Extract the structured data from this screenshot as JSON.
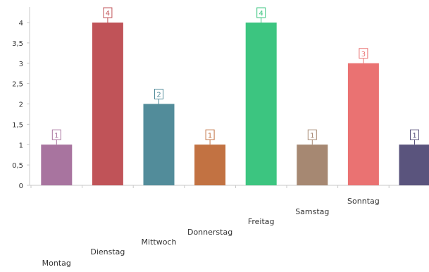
{
  "chart_data": {
    "type": "bar",
    "title": "",
    "xlabel": "",
    "ylabel": "",
    "ylim": [
      0,
      4
    ],
    "yticks": [
      "0",
      "0,5",
      "1",
      "1,5",
      "2",
      "2,5",
      "3",
      "3,5",
      "4"
    ],
    "grid": false,
    "legend": "none",
    "categories": [
      "Montag",
      "Dienstag",
      "Mittwoch",
      "Donnerstag",
      "Freitag",
      "Samstag",
      "Sonntag",
      ""
    ],
    "values": [
      1,
      4,
      2,
      1,
      4,
      1,
      3,
      1
    ],
    "value_labels": [
      "1",
      "4",
      "2",
      "1",
      "4",
      "1",
      "3",
      "1"
    ],
    "colors": [
      "#a8749f",
      "#c05358",
      "#528c9a",
      "#c27242",
      "#3cc580",
      "#a68872",
      "#ea7272",
      "#5a547d"
    ]
  }
}
